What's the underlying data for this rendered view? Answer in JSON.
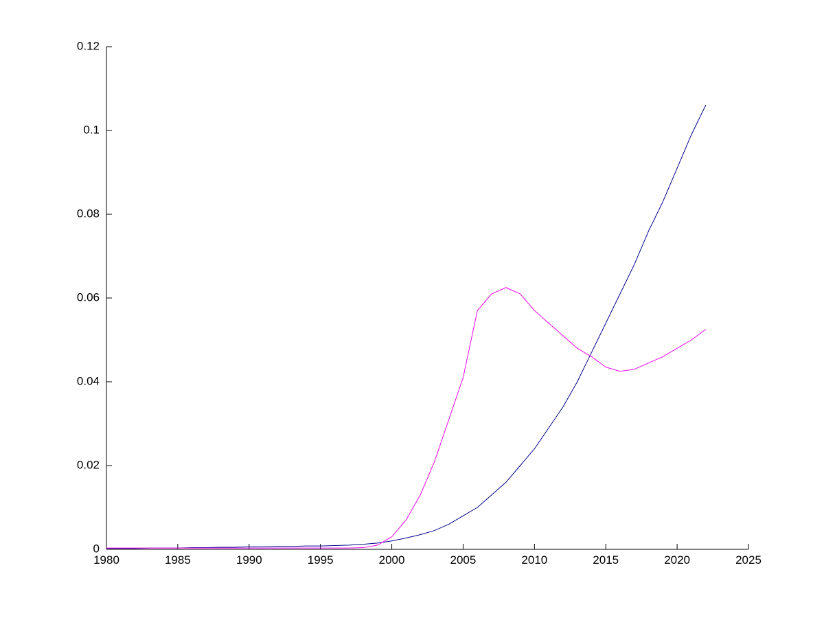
{
  "figure": {
    "background": "#ffffff"
  },
  "chart_data": {
    "type": "line",
    "title": "",
    "xlabel": "",
    "ylabel": "",
    "grid": false,
    "legend_position": "none",
    "xlim": [
      1980,
      2025
    ],
    "ylim": [
      0,
      0.12
    ],
    "xticks": [
      1980,
      1985,
      1990,
      1995,
      2000,
      2005,
      2010,
      2015,
      2020,
      2025
    ],
    "xtick_labels": [
      "1980",
      "1985",
      "1990",
      "1995",
      "2000",
      "2005",
      "2010",
      "2015",
      "2020",
      "2025"
    ],
    "yticks": [
      0,
      0.02,
      0.04,
      0.06,
      0.08,
      0.1,
      0.12
    ],
    "ytick_labels": [
      "0",
      "0.02",
      "0.04",
      "0.06",
      "0.08",
      "0.1",
      "0.12"
    ],
    "axis_color": "#000000",
    "x": [
      1980,
      1981,
      1982,
      1983,
      1984,
      1985,
      1986,
      1987,
      1988,
      1989,
      1990,
      1991,
      1992,
      1993,
      1994,
      1995,
      1996,
      1997,
      1998,
      1999,
      2000,
      2001,
      2002,
      2003,
      2004,
      2005,
      2006,
      2007,
      2008,
      2009,
      2010,
      2011,
      2012,
      2013,
      2014,
      2015,
      2016,
      2017,
      2018,
      2019,
      2020,
      2021,
      2022
    ],
    "series": [
      {
        "name": "dark-blue-series",
        "color": "#00008B",
        "line_width": 1,
        "values": [
          0.0002,
          0.0002,
          0.0002,
          0.0003,
          0.0003,
          0.0003,
          0.0004,
          0.0004,
          0.0005,
          0.0005,
          0.0006,
          0.0006,
          0.0007,
          0.0007,
          0.0008,
          0.0008,
          0.0009,
          0.001,
          0.0012,
          0.0015,
          0.002,
          0.0027,
          0.0035,
          0.0045,
          0.006,
          0.008,
          0.01,
          0.013,
          0.016,
          0.02,
          0.024,
          0.029,
          0.034,
          0.04,
          0.047,
          0.054,
          0.061,
          0.068,
          0.076,
          0.083,
          0.091,
          0.099,
          0.106
        ]
      },
      {
        "name": "magenta-series",
        "color": "#EE00EE",
        "line_width": 1,
        "values": [
          0.0003,
          0.0003,
          0.0003,
          0.0003,
          0.0003,
          0.0003,
          0.0003,
          0.0003,
          0.0003,
          0.0003,
          0.0003,
          0.0003,
          0.0003,
          0.0003,
          0.0003,
          0.0003,
          0.0003,
          0.0003,
          0.0004,
          0.001,
          0.003,
          0.007,
          0.013,
          0.021,
          0.031,
          0.041,
          0.057,
          0.061,
          0.0625,
          0.061,
          0.057,
          0.054,
          0.051,
          0.048,
          0.046,
          0.0435,
          0.0425,
          0.043,
          0.0445,
          0.046,
          0.048,
          0.05,
          0.0525
        ]
      }
    ]
  }
}
